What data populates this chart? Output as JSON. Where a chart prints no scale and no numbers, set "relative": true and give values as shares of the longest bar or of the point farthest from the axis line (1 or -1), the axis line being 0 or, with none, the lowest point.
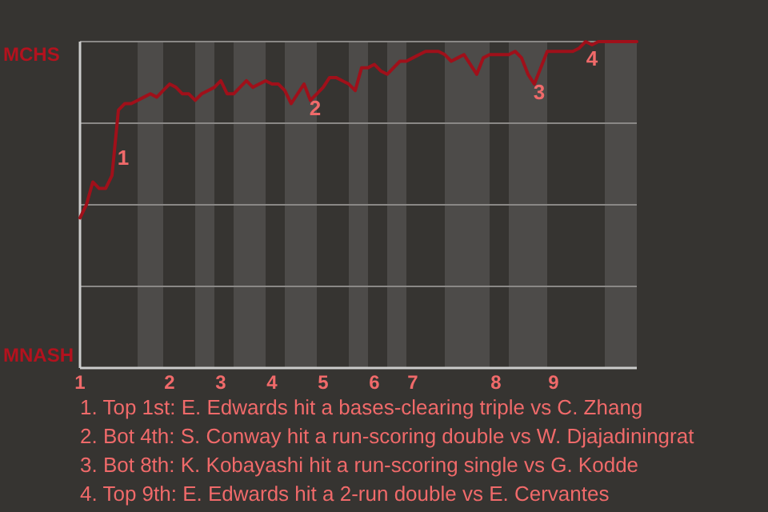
{
  "chart_data": {
    "type": "line",
    "relative": true,
    "categories": [
      "1",
      null,
      null,
      null,
      null,
      null,
      null,
      null,
      null,
      null,
      null,
      null,
      null,
      null,
      "2",
      null,
      null,
      null,
      null,
      null,
      null,
      null,
      "3",
      null,
      null,
      null,
      null,
      null,
      null,
      null,
      "4",
      null,
      null,
      null,
      null,
      null,
      null,
      null,
      "5",
      null,
      null,
      null,
      null,
      null,
      null,
      null,
      "6",
      null,
      null,
      null,
      null,
      null,
      "7",
      null,
      null,
      null,
      null,
      null,
      null,
      null,
      null,
      null,
      null,
      null,
      null,
      "8",
      null,
      null,
      null,
      null,
      null,
      null,
      null,
      null,
      "9",
      null,
      null,
      null,
      null,
      null,
      null,
      null,
      null,
      null,
      null,
      null,
      null,
      null
    ],
    "grid": "y",
    "marker": "none",
    "line_style": "solid",
    "series": [
      {
        "color": "#a0101a",
        "values": [
          0.46,
          0.5,
          0.57,
          0.55,
          0.55,
          0.59,
          0.79,
          0.81,
          0.81,
          0.82,
          0.83,
          0.84,
          0.83,
          0.85,
          0.87,
          0.86,
          0.84,
          0.84,
          0.82,
          0.84,
          0.85,
          0.86,
          0.88,
          0.84,
          0.84,
          0.86,
          0.88,
          0.86,
          0.87,
          0.88,
          0.87,
          0.87,
          0.85,
          0.81,
          0.84,
          0.87,
          0.82,
          0.84,
          0.86,
          0.89,
          0.89,
          0.88,
          0.87,
          0.85,
          0.92,
          0.92,
          0.93,
          0.91,
          0.9,
          0.92,
          0.94,
          0.94,
          0.95,
          0.96,
          0.97,
          0.97,
          0.97,
          0.96,
          0.94,
          0.95,
          0.96,
          0.93,
          0.9,
          0.95,
          0.96,
          0.96,
          0.96,
          0.96,
          0.97,
          0.95,
          0.9,
          0.87,
          0.92,
          0.97,
          0.97,
          0.97,
          0.97,
          0.97,
          0.98,
          1,
          0.99,
          1,
          1,
          1,
          1,
          1,
          1,
          1
        ]
      }
    ],
    "annotations": [
      "MCHS",
      "MNASH",
      "1",
      "2",
      "3",
      "4",
      "1. Top 1st: E. Edwards hit a bases-clearing triple vs C. Zhang",
      "2. Bot 4th: S. Conway hit a run-scoring double vs W. Djajadiningrat",
      "3. Bot 8th: K. Kobayashi hit a run-scoring single vs G. Kodde",
      "4. Top 9th: E. Edwards hit a 2-run double vs E. Cervantes"
    ]
  }
}
